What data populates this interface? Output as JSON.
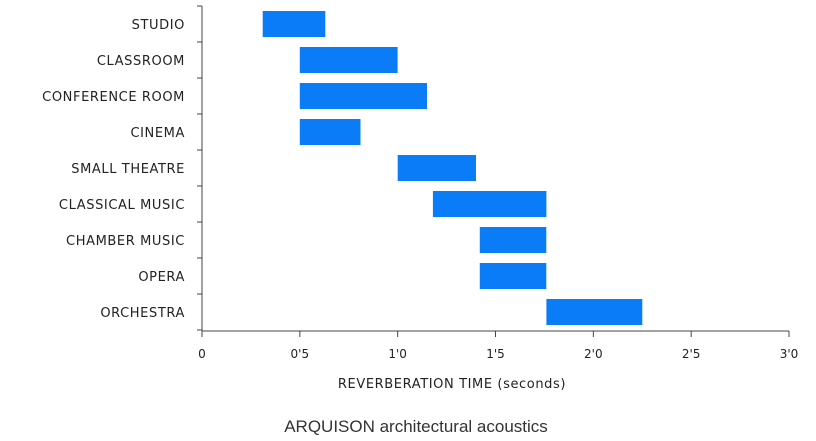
{
  "chart_data": {
    "type": "bar",
    "orientation": "horizontal-range",
    "categories": [
      "STUDIO",
      "CLASSROOM",
      "CONFERENCE ROOM",
      "CINEMA",
      "SMALL THEATRE",
      "CLASSICAL MUSIC",
      "CHAMBER MUSIC",
      "OPERA",
      "ORCHESTRA"
    ],
    "ranges": [
      [
        0.31,
        0.63
      ],
      [
        0.5,
        1.0
      ],
      [
        0.5,
        1.15
      ],
      [
        0.5,
        0.81
      ],
      [
        1.0,
        1.4
      ],
      [
        1.18,
        1.76
      ],
      [
        1.42,
        1.76
      ],
      [
        1.42,
        1.76
      ],
      [
        1.76,
        2.25
      ]
    ],
    "xlabel": "REVERBERATION TIME (seconds)",
    "ylabel": "",
    "xlim": [
      0,
      3.0
    ],
    "xticks": [
      0,
      0.5,
      1.0,
      1.5,
      2.0,
      2.5,
      3.0
    ],
    "xtick_labels": [
      "0",
      "0'5",
      "1'0",
      "1'5",
      "2'0",
      "2'5",
      "3'0"
    ],
    "grid": false,
    "bar_color": "#0a7cf7",
    "title": ""
  },
  "caption": "ARQUISON architectural acoustics"
}
